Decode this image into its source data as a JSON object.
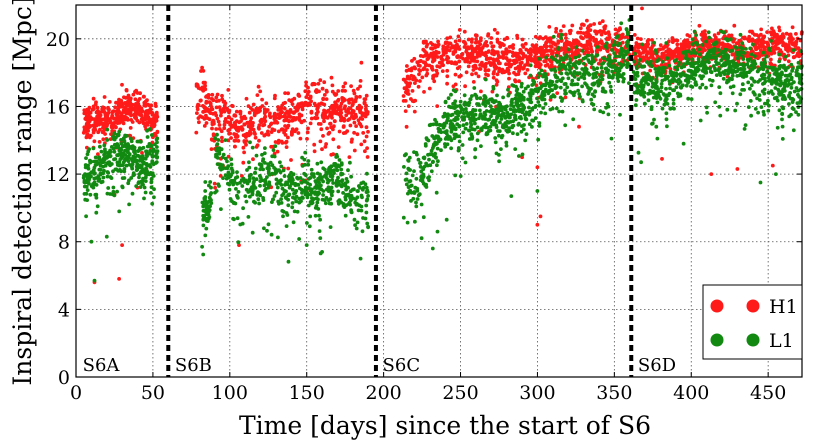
{
  "chart_data": {
    "type": "scatter",
    "xlabel": "Time [days] since the start of S6",
    "ylabel": "Inspiral detection range [Mpc]",
    "xlim": [
      0,
      472
    ],
    "ylim": [
      0,
      22
    ],
    "xticks": [
      0,
      50,
      100,
      150,
      200,
      250,
      300,
      350,
      400,
      450
    ],
    "yticks": [
      0,
      4,
      8,
      12,
      16,
      20
    ],
    "grid": true,
    "legend_placement": "bottom-right",
    "run_boundaries": [
      60,
      195,
      361
    ],
    "run_labels": [
      {
        "label": "S6A",
        "x": 3
      },
      {
        "label": "S6B",
        "x": 63
      },
      {
        "label": "S6C",
        "x": 198
      },
      {
        "label": "S6D",
        "x": 364
      }
    ],
    "series": [
      {
        "name": "H1",
        "color": "#ff1a1a",
        "segments": [
          {
            "x": [
              5,
              15,
              25,
              32,
              38,
              45,
              53
            ],
            "y": [
              15.0,
              15.2,
              15.3,
              15.8,
              16.0,
              15.5,
              15.4
            ],
            "spread": 0.9,
            "count": 380,
            "outliers": [
              [
                12,
                5.6
              ],
              [
                28,
                5.8
              ],
              [
                30,
                7.8
              ],
              [
                25,
                10.8
              ],
              [
                40,
                11.2
              ]
            ]
          },
          {
            "x": [
              78,
              90,
              100,
              110,
              120,
              130,
              140,
              150,
              160,
              170,
              180,
              190
            ],
            "y": [
              17.2,
              15.5,
              15.3,
              14.8,
              15.6,
              15.0,
              15.4,
              16.0,
              16.2,
              15.8,
              16.1,
              16.3
            ],
            "spread": 1.4,
            "count": 650,
            "outliers": [
              [
                106,
                7.8
              ],
              [
                150,
                11.0
              ],
              [
                128,
                10.5
              ],
              [
                82,
                18.3
              ]
            ]
          },
          {
            "x": [
              213,
              225,
              240,
              255,
              270,
              285,
              300,
              315,
              330,
              345,
              360
            ],
            "y": [
              17.0,
              18.5,
              19.2,
              19.3,
              18.8,
              18.8,
              19.0,
              19.5,
              19.8,
              19.8,
              19.6
            ],
            "spread": 1.1,
            "count": 900,
            "outliers": [
              [
                300,
                12.4
              ],
              [
                290,
                13.0
              ],
              [
                262,
                14.5
              ],
              [
                327,
                14.8
              ],
              [
                300,
                9.0
              ],
              [
                302,
                9.5
              ]
            ]
          },
          {
            "x": [
              362,
              375,
              390,
              405,
              420,
              435,
              450,
              465,
              472
            ],
            "y": [
              19.3,
              19.0,
              19.2,
              19.6,
              19.5,
              19.6,
              19.7,
              19.7,
              19.5
            ],
            "spread": 0.8,
            "count": 700,
            "outliers": [
              [
                368,
                21.8
              ],
              [
                381,
                12.9
              ],
              [
                430,
                12.3
              ],
              [
                413,
                12.0
              ],
              [
                453,
                12.5
              ]
            ]
          }
        ]
      },
      {
        "name": "L1",
        "color": "#128a12",
        "segments": [
          {
            "x": [
              5,
              15,
              25,
              35,
              45,
              53
            ],
            "y": [
              11.8,
              12.3,
              13.3,
              13.2,
              12.5,
              13.4
            ],
            "spread": 1.3,
            "count": 360,
            "outliers": [
              [
                12,
                5.7
              ],
              [
                10,
                8.0
              ],
              [
                20,
                8.3
              ]
            ]
          },
          {
            "x": [
              82,
              88
            ],
            "y": [
              9.8,
              10.8
            ],
            "spread": 1.0,
            "count": 50,
            "outliers": []
          },
          {
            "x": [
              90,
              100,
              110,
              120,
              130,
              140,
              150,
              160,
              170,
              180,
              190
            ],
            "y": [
              13.5,
              11.8,
              11.0,
              11.8,
              11.6,
              11.0,
              11.5,
              11.0,
              11.8,
              10.2,
              10.5
            ],
            "spread": 1.4,
            "count": 520,
            "outliers": [
              [
                82,
                7.7
              ],
              [
                150,
                7.8
              ],
              [
                160,
                7.4
              ],
              [
                185,
                7.0
              ]
            ]
          },
          {
            "x": [
              213,
              222,
              230,
              240,
              255,
              270,
              285,
              300,
              315,
              330,
              345,
              360
            ],
            "y": [
              12.0,
              11.5,
              13.0,
              15.0,
              15.5,
              15.3,
              15.8,
              16.8,
              18.2,
              17.8,
              18.0,
              19.5
            ],
            "spread": 1.4,
            "count": 900,
            "outliers": [
              [
                232,
                7.6
              ],
              [
                235,
                8.6
              ],
              [
                241,
                9.3
              ],
              [
                283,
                10.7
              ],
              [
                300,
                11.0
              ]
            ]
          },
          {
            "x": [
              362,
              375,
              390,
              405,
              420,
              435,
              450,
              465,
              472
            ],
            "y": [
              17.5,
              17.5,
              17.8,
              18.5,
              19.0,
              18.2,
              17.8,
              17.2,
              17.5
            ],
            "spread": 1.4,
            "count": 720,
            "outliers": [
              [
                375,
                15.0
              ],
              [
                378,
                14.1
              ],
              [
                395,
                13.8
              ],
              [
                445,
                11.5
              ],
              [
                455,
                12.0
              ]
            ]
          }
        ]
      }
    ]
  }
}
